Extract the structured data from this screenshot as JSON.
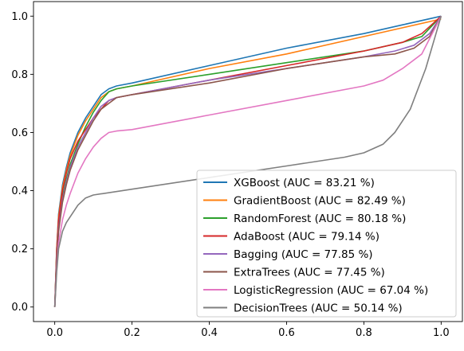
{
  "chart_data": {
    "type": "line",
    "title": "",
    "xlabel": "",
    "ylabel": "",
    "xlim": [
      -0.055,
      1.055
    ],
    "ylim": [
      -0.05,
      1.05
    ],
    "x_ticks": [
      0.0,
      0.2,
      0.4,
      0.6,
      0.8,
      1.0
    ],
    "y_ticks": [
      0.0,
      0.2,
      0.4,
      0.6,
      0.8,
      1.0
    ],
    "x_tick_labels": [
      "0.0",
      "0.2",
      "0.4",
      "0.6",
      "0.8",
      "1.0"
    ],
    "y_tick_labels": [
      "0.0",
      "0.2",
      "0.4",
      "0.6",
      "0.8",
      "1.0"
    ],
    "grid": false,
    "legend_position": "lower-right",
    "series": [
      {
        "name": "XGBoost (AUC = 83.21 %)",
        "color": "#1f77b4",
        "x": [
          0.0,
          0.005,
          0.01,
          0.02,
          0.03,
          0.04,
          0.06,
          0.08,
          0.1,
          0.12,
          0.14,
          0.16,
          0.2,
          0.4,
          0.6,
          0.8,
          0.9,
          1.0
        ],
        "y": [
          0.0,
          0.2,
          0.32,
          0.42,
          0.48,
          0.53,
          0.6,
          0.65,
          0.69,
          0.73,
          0.75,
          0.76,
          0.77,
          0.83,
          0.89,
          0.94,
          0.97,
          1.0
        ]
      },
      {
        "name": "GradientBoost (AUC = 82.49 %)",
        "color": "#ff7f0e",
        "x": [
          0.0,
          0.005,
          0.01,
          0.02,
          0.03,
          0.04,
          0.06,
          0.08,
          0.1,
          0.12,
          0.14,
          0.16,
          0.2,
          0.4,
          0.6,
          0.8,
          0.9,
          1.0
        ],
        "y": [
          0.0,
          0.2,
          0.31,
          0.41,
          0.47,
          0.52,
          0.59,
          0.64,
          0.68,
          0.72,
          0.74,
          0.75,
          0.76,
          0.82,
          0.87,
          0.93,
          0.96,
          0.99
        ]
      },
      {
        "name": "RandomForest (AUC = 80.18 %)",
        "color": "#2ca02c",
        "x": [
          0.0,
          0.005,
          0.01,
          0.02,
          0.03,
          0.04,
          0.06,
          0.08,
          0.1,
          0.12,
          0.14,
          0.16,
          0.2,
          0.4,
          0.6,
          0.8,
          0.9,
          0.95,
          1.0
        ],
        "y": [
          0.0,
          0.18,
          0.29,
          0.38,
          0.44,
          0.49,
          0.56,
          0.62,
          0.67,
          0.71,
          0.74,
          0.75,
          0.76,
          0.8,
          0.84,
          0.88,
          0.91,
          0.93,
          1.0
        ]
      },
      {
        "name": "AdaBoost (AUC = 79.14 %)",
        "color": "#d62728",
        "x": [
          0.0,
          0.005,
          0.01,
          0.02,
          0.03,
          0.04,
          0.06,
          0.08,
          0.1,
          0.12,
          0.14,
          0.16,
          0.2,
          0.4,
          0.6,
          0.8,
          0.9,
          0.95,
          1.0
        ],
        "y": [
          0.0,
          0.19,
          0.3,
          0.4,
          0.46,
          0.51,
          0.57,
          0.61,
          0.65,
          0.68,
          0.71,
          0.72,
          0.73,
          0.78,
          0.83,
          0.88,
          0.91,
          0.94,
          1.0
        ]
      },
      {
        "name": "Bagging (AUC = 77.85 %)",
        "color": "#9467bd",
        "x": [
          0.0,
          0.005,
          0.01,
          0.02,
          0.03,
          0.04,
          0.06,
          0.08,
          0.1,
          0.12,
          0.14,
          0.16,
          0.2,
          0.4,
          0.6,
          0.8,
          0.88,
          0.93,
          0.97,
          1.0
        ],
        "y": [
          0.0,
          0.17,
          0.27,
          0.37,
          0.43,
          0.48,
          0.55,
          0.6,
          0.65,
          0.69,
          0.71,
          0.72,
          0.73,
          0.78,
          0.82,
          0.86,
          0.88,
          0.9,
          0.94,
          1.0
        ]
      },
      {
        "name": "ExtraTrees (AUC = 77.45 %)",
        "color": "#8c564b",
        "x": [
          0.0,
          0.005,
          0.01,
          0.02,
          0.03,
          0.04,
          0.06,
          0.08,
          0.1,
          0.12,
          0.14,
          0.16,
          0.2,
          0.4,
          0.6,
          0.8,
          0.88,
          0.93,
          0.97,
          1.0
        ],
        "y": [
          0.0,
          0.16,
          0.26,
          0.36,
          0.42,
          0.47,
          0.54,
          0.59,
          0.64,
          0.68,
          0.7,
          0.72,
          0.73,
          0.77,
          0.82,
          0.86,
          0.87,
          0.89,
          0.93,
          1.0
        ]
      },
      {
        "name": "LogisticRegression (AUC = 67.04 %)",
        "color": "#e377c2",
        "x": [
          0.0,
          0.005,
          0.01,
          0.02,
          0.03,
          0.04,
          0.06,
          0.08,
          0.1,
          0.12,
          0.14,
          0.16,
          0.2,
          0.4,
          0.6,
          0.8,
          0.85,
          0.9,
          0.95,
          1.0
        ],
        "y": [
          0.0,
          0.13,
          0.22,
          0.3,
          0.35,
          0.39,
          0.46,
          0.51,
          0.55,
          0.58,
          0.6,
          0.605,
          0.61,
          0.66,
          0.71,
          0.76,
          0.78,
          0.82,
          0.87,
          1.0
        ]
      },
      {
        "name": "DecisionTrees (AUC = 50.14 %)",
        "color": "#7f7f7f",
        "x": [
          0.0,
          0.005,
          0.01,
          0.02,
          0.03,
          0.04,
          0.06,
          0.08,
          0.1,
          0.2,
          0.4,
          0.6,
          0.75,
          0.8,
          0.85,
          0.88,
          0.92,
          0.96,
          1.0
        ],
        "y": [
          0.0,
          0.12,
          0.2,
          0.26,
          0.29,
          0.31,
          0.35,
          0.375,
          0.385,
          0.405,
          0.445,
          0.485,
          0.515,
          0.53,
          0.56,
          0.6,
          0.68,
          0.82,
          1.0
        ]
      }
    ]
  }
}
